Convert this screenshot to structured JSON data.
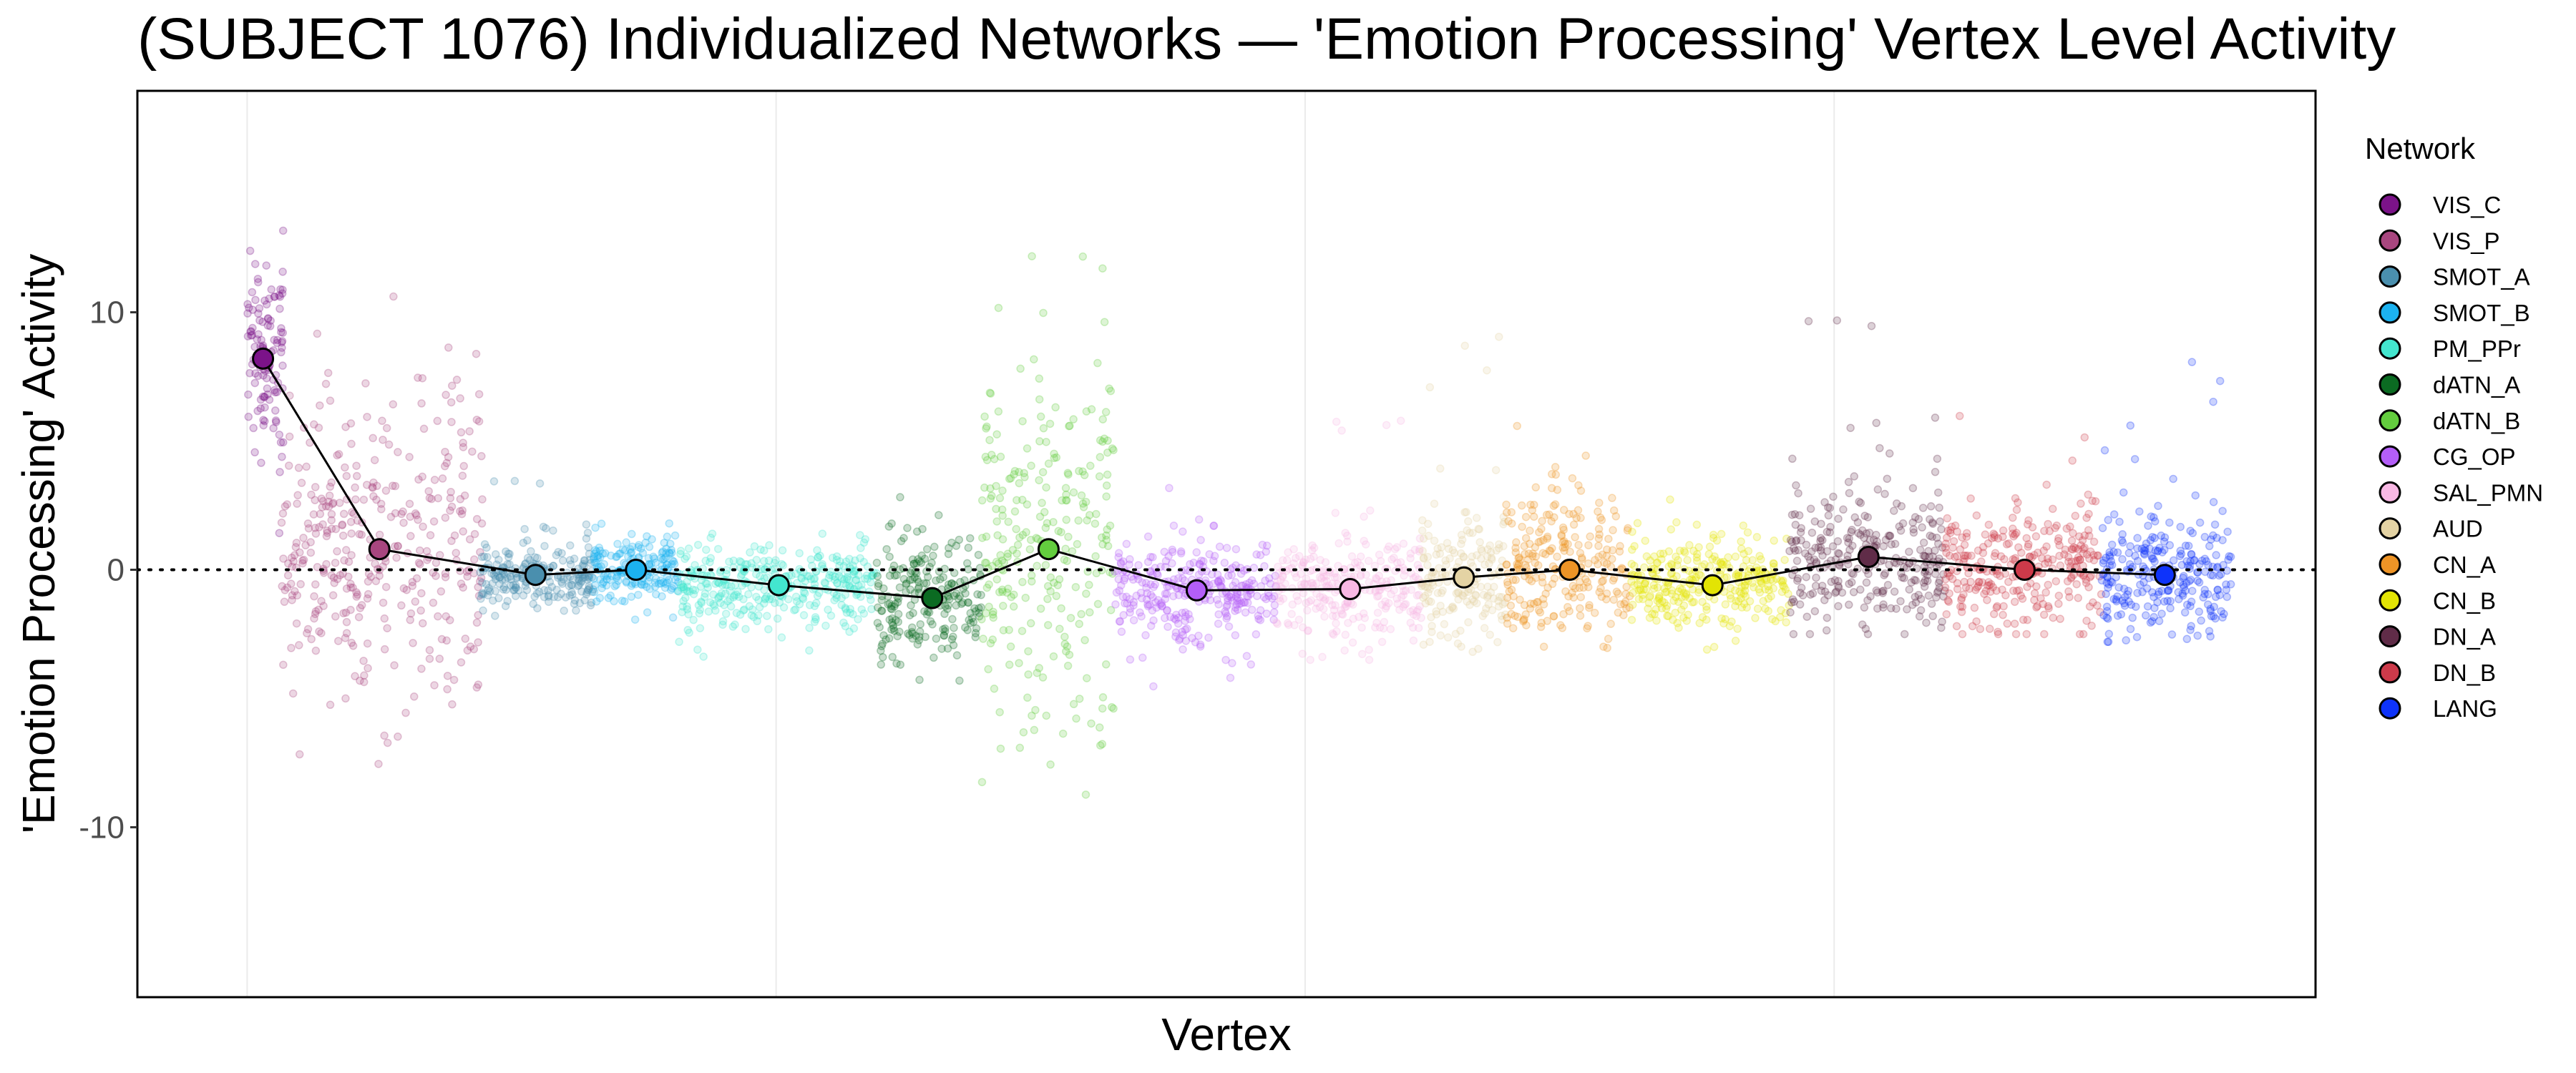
{
  "chart_data": {
    "type": "scatter",
    "title": "(SUBJECT 1076) Individualized Networks — 'Emotion Processing' Vertex Level Activity",
    "xlabel": "Vertex",
    "ylabel": "'Emotion Processing' Activity",
    "ylim": [
      -16.6,
      18.6
    ],
    "xlim": [
      -4150,
      78200
    ],
    "yticks": [
      {
        "value": -10,
        "label": "-10"
      },
      {
        "value": 0,
        "label": "0"
      },
      {
        "value": 10,
        "label": "10"
      }
    ],
    "x_gridlines": [
      0,
      20000,
      40000,
      60000
    ],
    "reference_line": {
      "y": 0,
      "style": "dotted"
    },
    "legend": {
      "title": "Network",
      "placement": "right"
    },
    "networks": [
      {
        "name": "VIS_C",
        "color": "#7B1389",
        "x_range": [
          0,
          1400
        ],
        "mean": 8.2,
        "sd": 2.0,
        "lo": 0,
        "hi": 13.8
      },
      {
        "name": "VIS_P",
        "color": "#A8467F",
        "x_range": [
          1300,
          8900
        ],
        "mean": 0.8,
        "sd": 3.0,
        "lo": -8.2,
        "hi": 11.8
      },
      {
        "name": "SMOT_A",
        "color": "#4A8FAE",
        "x_range": [
          8800,
          13100
        ],
        "mean": -0.2,
        "sd": 0.6,
        "lo": -2.0,
        "hi": 3.5
      },
      {
        "name": "SMOT_B",
        "color": "#1CB2F0",
        "x_range": [
          13100,
          16300
        ],
        "mean": 0.0,
        "sd": 0.6,
        "lo": -2.0,
        "hi": 1.8
      },
      {
        "name": "PM_PPr",
        "color": "#43E6CF",
        "x_range": [
          16300,
          23800
        ],
        "mean": -0.6,
        "sd": 0.8,
        "lo": -3.8,
        "hi": 1.4
      },
      {
        "name": "dATN_A",
        "color": "#0B6B22",
        "x_range": [
          23800,
          27750
        ],
        "mean": -1.1,
        "sd": 1.2,
        "lo": -4.5,
        "hi": 6.3
      },
      {
        "name": "dATN_B",
        "color": "#63CD3E",
        "x_range": [
          27750,
          32800
        ],
        "mean": 0.8,
        "sd": 3.5,
        "lo": -9.0,
        "hi": 13.7
      },
      {
        "name": "CG_OP",
        "color": "#B45EF8",
        "x_range": [
          32800,
          38900
        ],
        "mean": -0.8,
        "sd": 1.0,
        "lo": -4.7,
        "hi": 5.2
      },
      {
        "name": "SAL_PMN",
        "color": "#F8B8E4",
        "x_range": [
          38900,
          44400
        ],
        "mean": -0.75,
        "sd": 1.0,
        "lo": -3.5,
        "hi": 6.0
      },
      {
        "name": "AUD",
        "color": "#E4D3A4",
        "x_range": [
          44400,
          47600
        ],
        "mean": -0.3,
        "sd": 1.2,
        "lo": -4.5,
        "hi": 10.3
      },
      {
        "name": "CN_A",
        "color": "#EE9426",
        "x_range": [
          47600,
          52300
        ],
        "mean": 0.0,
        "sd": 1.5,
        "lo": -3.3,
        "hi": 6.2
      },
      {
        "name": "CN_B",
        "color": "#E3E404",
        "x_range": [
          52300,
          58300
        ],
        "mean": -0.6,
        "sd": 0.9,
        "lo": -3.5,
        "hi": 3.3
      },
      {
        "name": "DN_A",
        "color": "#602C48",
        "x_range": [
          58300,
          64200
        ],
        "mean": 0.5,
        "sd": 1.4,
        "lo": -2.5,
        "hi": 9.8
      },
      {
        "name": "DN_B",
        "color": "#CD3A4A",
        "x_range": [
          64200,
          70100
        ],
        "mean": 0.0,
        "sd": 1.2,
        "lo": -2.5,
        "hi": 6.0
      },
      {
        "name": "LANG",
        "color": "#0E33FA",
        "x_range": [
          70100,
          75000
        ],
        "mean": -0.2,
        "sd": 1.2,
        "lo": -2.8,
        "hi": 9.6
      }
    ],
    "means_line": {
      "x": [
        600,
        5000,
        10900,
        14700,
        20100,
        25900,
        30300,
        35900,
        41700,
        46000,
        50000,
        55400,
        61300,
        67200,
        72500
      ]
    }
  }
}
